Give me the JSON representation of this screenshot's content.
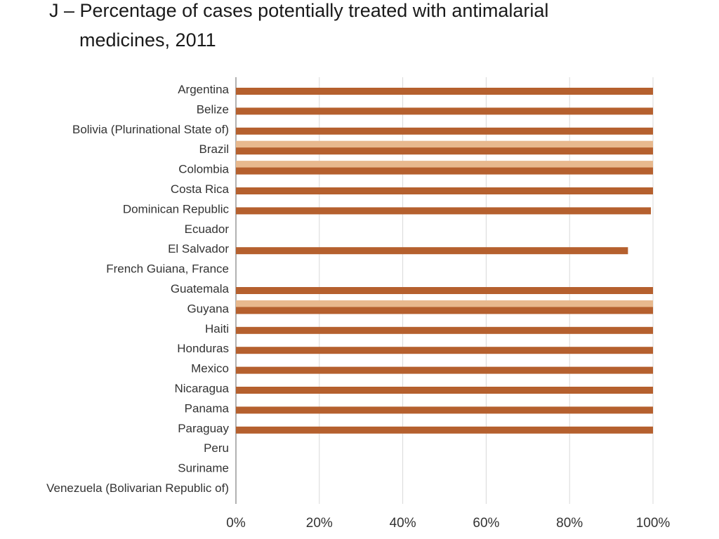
{
  "title_line1": "J – Percentage of cases potentially treated with antimalarial",
  "title_line2": "medicines, 2011",
  "colors": {
    "dark": "#b5602e",
    "light": "#e8b98e",
    "grid": "#d9d9d9",
    "axis": "#999999"
  },
  "chart_data": {
    "type": "bar",
    "orientation": "horizontal",
    "title": "J – Percentage of cases potentially treated with antimalarial medicines, 2011",
    "categories": [
      "Argentina",
      "Belize",
      "Bolivia (Plurinational State of)",
      "Brazil",
      "Colombia",
      "Costa Rica",
      "Dominican Republic",
      "Ecuador",
      "El Salvador",
      "French Guiana, France",
      "Guatemala",
      "Guyana",
      "Haiti",
      "Honduras",
      "Mexico",
      "Nicaragua",
      "Panama",
      "Paraguay",
      "Peru",
      "Suriname",
      "Venezuela (Bolivarian Republic of)"
    ],
    "series": [
      {
        "color": "#e8b98e",
        "values": [
          null,
          null,
          null,
          100,
          100,
          null,
          null,
          null,
          null,
          null,
          null,
          100,
          null,
          null,
          null,
          null,
          null,
          null,
          null,
          null,
          null
        ]
      },
      {
        "color": "#b5602e",
        "values": [
          100,
          100,
          100,
          100,
          100,
          100,
          99.5,
          null,
          94,
          null,
          100,
          100,
          100,
          100,
          100,
          100,
          100,
          100,
          null,
          null,
          null
        ]
      }
    ],
    "xlim": [
      0,
      100
    ],
    "xticks": [
      "0%",
      "20%",
      "40%",
      "60%",
      "80%",
      "100%"
    ],
    "grid": true,
    "legend": "none"
  }
}
